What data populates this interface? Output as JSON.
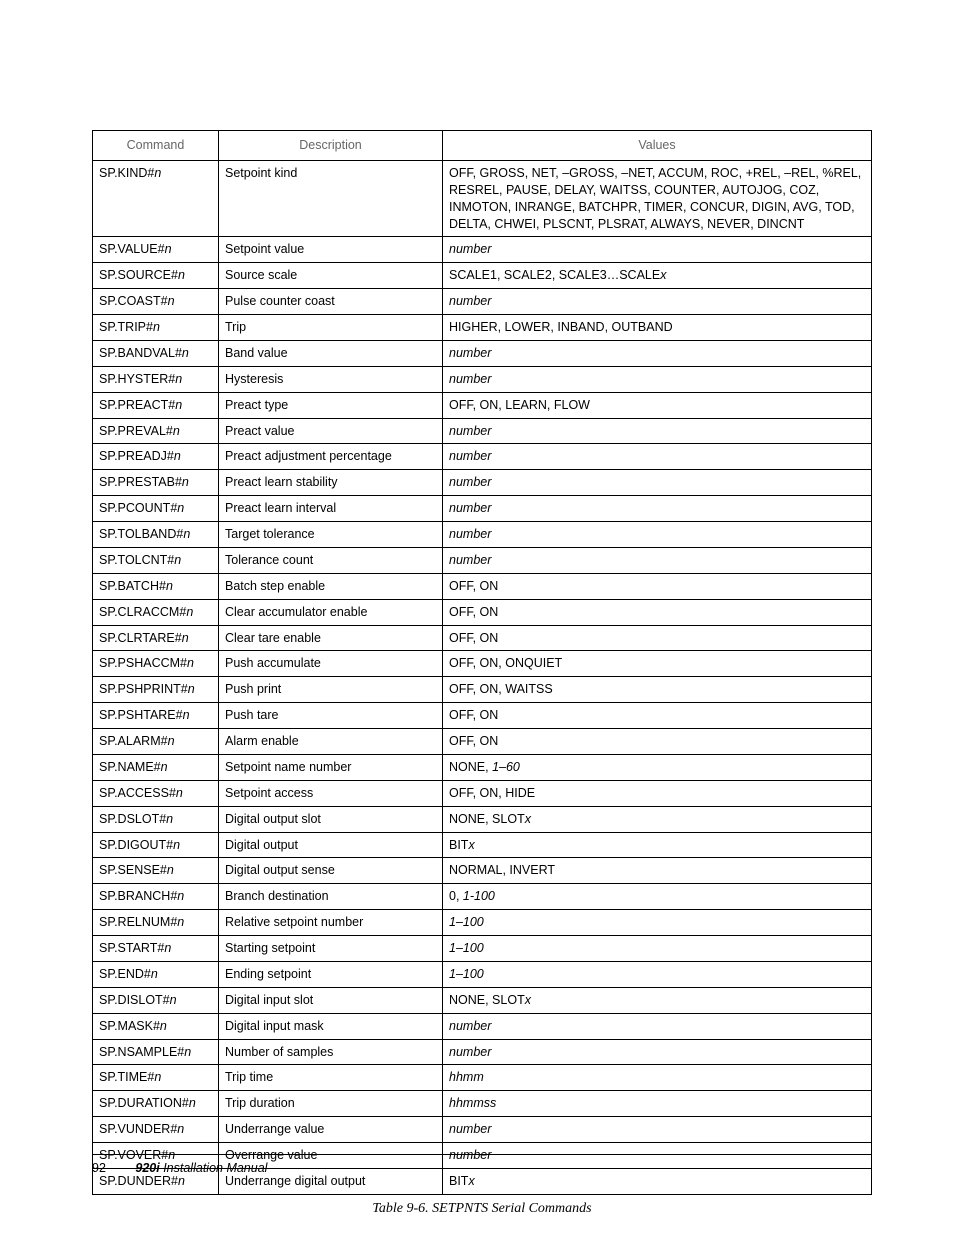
{
  "table": {
    "headers": [
      "Command",
      "Description",
      "Values"
    ],
    "rows": [
      {
        "cmd_fixed": "SP.KIND#",
        "cmd_var": "n",
        "desc": "Setpoint kind",
        "val_fixed": "OFF, GROSS, NET, –GROSS, –NET, ACCUM, ROC, +REL, –REL, %REL, RESREL, PAUSE, DELAY, WAITSS, COUNTER, AUTOJOG, COZ, INMOTON, INRANGE, BATCHPR, TIMER, CONCUR, DIGIN, AVG, TOD, DELTA, CHWEI, PLSCNT, PLSRAT, ALWAYS, NEVER, DINCNT",
        "val_var": ""
      },
      {
        "cmd_fixed": "SP.VALUE#",
        "cmd_var": "n",
        "desc": "Setpoint value",
        "val_fixed": "",
        "val_var": "number"
      },
      {
        "cmd_fixed": "SP.SOURCE#",
        "cmd_var": "n",
        "desc": "Source scale",
        "val_fixed": "SCALE1, SCALE2, SCALE3…SCALE",
        "val_var": "x"
      },
      {
        "cmd_fixed": "SP.COAST#",
        "cmd_var": "n",
        "desc": "Pulse counter coast",
        "val_fixed": "",
        "val_var": "number"
      },
      {
        "cmd_fixed": "SP.TRIP#",
        "cmd_var": "n",
        "desc": "Trip",
        "val_fixed": "HIGHER, LOWER, INBAND, OUTBAND",
        "val_var": ""
      },
      {
        "cmd_fixed": "SP.BANDVAL#",
        "cmd_var": "n",
        "desc": "Band value",
        "val_fixed": "",
        "val_var": "number"
      },
      {
        "cmd_fixed": "SP.HYSTER#",
        "cmd_var": "n",
        "desc": "Hysteresis",
        "val_fixed": "",
        "val_var": "number"
      },
      {
        "cmd_fixed": "SP.PREACT#",
        "cmd_var": "n",
        "desc": "Preact type",
        "val_fixed": "OFF, ON, LEARN, FLOW",
        "val_var": ""
      },
      {
        "cmd_fixed": "SP.PREVAL#",
        "cmd_var": "n",
        "desc": "Preact value",
        "val_fixed": "",
        "val_var": "number"
      },
      {
        "cmd_fixed": "SP.PREADJ#",
        "cmd_var": "n",
        "desc": "Preact adjustment percentage",
        "val_fixed": "",
        "val_var": "number"
      },
      {
        "cmd_fixed": "SP.PRESTAB#",
        "cmd_var": "n",
        "desc": "Preact learn stability",
        "val_fixed": "",
        "val_var": "number"
      },
      {
        "cmd_fixed": "SP.PCOUNT#",
        "cmd_var": "n",
        "desc": "Preact learn interval",
        "val_fixed": "",
        "val_var": "number"
      },
      {
        "cmd_fixed": "SP.TOLBAND#",
        "cmd_var": "n",
        "desc": "Target tolerance",
        "val_fixed": "",
        "val_var": "number"
      },
      {
        "cmd_fixed": "SP.TOLCNT#",
        "cmd_var": "n",
        "desc": "Tolerance count",
        "val_fixed": "",
        "val_var": "number"
      },
      {
        "cmd_fixed": "SP.BATCH#",
        "cmd_var": "n",
        "desc": "Batch step enable",
        "val_fixed": "OFF, ON",
        "val_var": ""
      },
      {
        "cmd_fixed": "SP.CLRACCM#",
        "cmd_var": "n",
        "desc": "Clear accumulator enable",
        "val_fixed": "OFF, ON",
        "val_var": ""
      },
      {
        "cmd_fixed": "SP.CLRTARE#",
        "cmd_var": "n",
        "desc": "Clear tare enable",
        "val_fixed": "OFF, ON",
        "val_var": ""
      },
      {
        "cmd_fixed": "SP.PSHACCM#",
        "cmd_var": "n",
        "desc": "Push accumulate",
        "val_fixed": "OFF, ON, ONQUIET",
        "val_var": ""
      },
      {
        "cmd_fixed": "SP.PSHPRINT#",
        "cmd_var": "n",
        "desc": "Push print",
        "val_fixed": "OFF, ON, WAITSS",
        "val_var": ""
      },
      {
        "cmd_fixed": "SP.PSHTARE#",
        "cmd_var": "n",
        "desc": "Push tare",
        "val_fixed": "OFF, ON",
        "val_var": ""
      },
      {
        "cmd_fixed": "SP.ALARM#",
        "cmd_var": "n",
        "desc": "Alarm enable",
        "val_fixed": "OFF, ON",
        "val_var": ""
      },
      {
        "cmd_fixed": "SP.NAME#",
        "cmd_var": "n",
        "desc": "Setpoint name number",
        "val_fixed": "NONE, ",
        "val_var": "1–60"
      },
      {
        "cmd_fixed": "SP.ACCESS#",
        "cmd_var": "n",
        "desc": "Setpoint access",
        "val_fixed": "OFF, ON, HIDE",
        "val_var": ""
      },
      {
        "cmd_fixed": "SP.DSLOT#",
        "cmd_var": "n",
        "desc": "Digital output slot",
        "val_fixed": "NONE, SLOT",
        "val_var": "x"
      },
      {
        "cmd_fixed": "SP.DIGOUT#",
        "cmd_var": "n",
        "desc": "Digital output",
        "val_fixed": "BIT",
        "val_var": "x"
      },
      {
        "cmd_fixed": "SP.SENSE#",
        "cmd_var": "n",
        "desc": "Digital output sense",
        "val_fixed": "NORMAL, INVERT",
        "val_var": ""
      },
      {
        "cmd_fixed": "SP.BRANCH#",
        "cmd_var": "n",
        "desc": "Branch destination",
        "val_fixed": "0, ",
        "val_var": "1-100"
      },
      {
        "cmd_fixed": "SP.RELNUM#",
        "cmd_var": "n",
        "desc": "Relative setpoint number",
        "val_fixed": "",
        "val_var": "1–100"
      },
      {
        "cmd_fixed": "SP.START#",
        "cmd_var": "n",
        "desc": "Starting setpoint",
        "val_fixed": "",
        "val_var": "1–100"
      },
      {
        "cmd_fixed": "SP.END#",
        "cmd_var": "n",
        "desc": "Ending setpoint",
        "val_fixed": "",
        "val_var": "1–100"
      },
      {
        "cmd_fixed": "SP.DISLOT#",
        "cmd_var": "n",
        "desc": "Digital input slot",
        "val_fixed": "NONE, SLOT",
        "val_var": "x"
      },
      {
        "cmd_fixed": "SP.MASK#",
        "cmd_var": "n",
        "desc": "Digital input mask",
        "val_fixed": "",
        "val_var": "number"
      },
      {
        "cmd_fixed": "SP.NSAMPLE#",
        "cmd_var": "n",
        "desc": "Number of samples",
        "val_fixed": "",
        "val_var": "number"
      },
      {
        "cmd_fixed": "SP.TIME#",
        "cmd_var": "n",
        "desc": "Trip time",
        "val_fixed": "",
        "val_var": "hhmm"
      },
      {
        "cmd_fixed": "SP.DURATION#",
        "cmd_var": "n",
        "desc": "Trip duration",
        "val_fixed": "",
        "val_var": "hhmmss"
      },
      {
        "cmd_fixed": "SP.VUNDER#",
        "cmd_var": "n",
        "desc": "Underrange value",
        "val_fixed": "",
        "val_var": "number"
      },
      {
        "cmd_fixed": "SP.VOVER#",
        "cmd_var": "n",
        "desc": "Overrange value",
        "val_fixed": "",
        "val_var": "number"
      },
      {
        "cmd_fixed": "SP.DUNDER#",
        "cmd_var": "n",
        "desc": "Underrange digital output",
        "val_fixed": "BIT",
        "val_var": "x"
      }
    ]
  },
  "caption": "Table 9-6. SETPNTS Serial Commands",
  "footer": {
    "page": "92",
    "title_strong": "920i",
    "title_rest": " Installation Manual"
  }
}
